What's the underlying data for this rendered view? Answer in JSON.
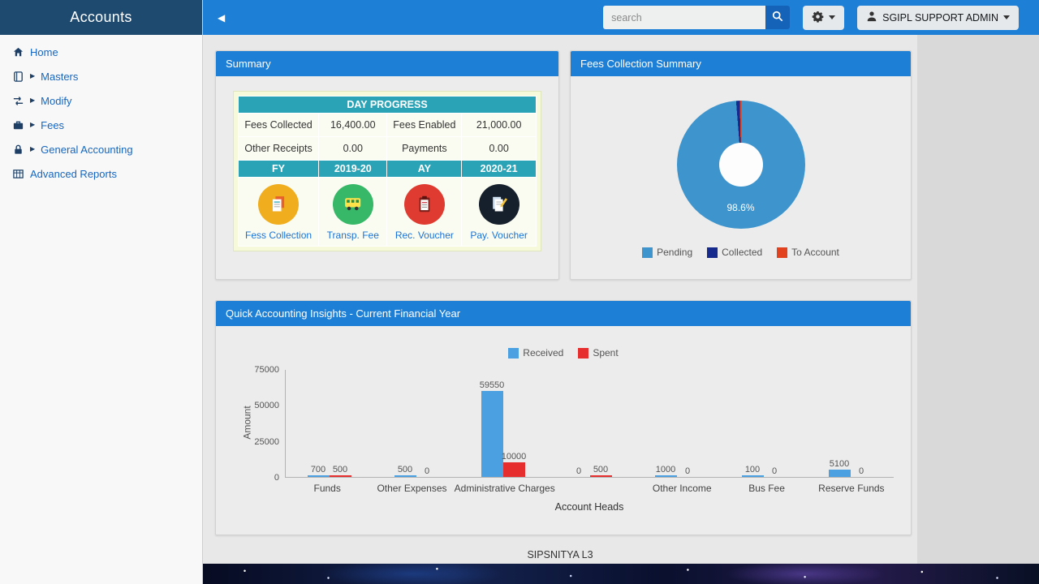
{
  "sidebar": {
    "title": "Accounts",
    "items": [
      {
        "label": "Home",
        "icon": "home-icon",
        "has_submenu": false
      },
      {
        "label": "Masters",
        "icon": "masters-icon",
        "has_submenu": true
      },
      {
        "label": "Modify",
        "icon": "modify-icon",
        "has_submenu": true
      },
      {
        "label": "Fees",
        "icon": "fees-icon",
        "has_submenu": true
      },
      {
        "label": "General Accounting",
        "icon": "lock-icon",
        "has_submenu": true
      },
      {
        "label": "Advanced Reports",
        "icon": "reports-icon",
        "has_submenu": false
      }
    ]
  },
  "topbar": {
    "collapse_arrow": "◀",
    "search_placeholder": "search",
    "user_label": "SGIPL SUPPORT ADMIN"
  },
  "summary_panel": {
    "title": "Summary",
    "table": {
      "header": "DAY PROGRESS",
      "header_color": "#29a3b5",
      "rows": [
        [
          "Fees Collected",
          "16,400.00",
          "Fees Enabled",
          "21,000.00"
        ],
        [
          "Other Receipts",
          "0.00",
          "Payments",
          "0.00"
        ]
      ],
      "year_row": [
        "FY",
        "2019-20",
        "AY",
        "2020-21"
      ]
    },
    "shortcuts": [
      {
        "label": "Fess Collection",
        "color": "#f0ad1d"
      },
      {
        "label": "Transp. Fee",
        "color": "#36b868"
      },
      {
        "label": "Rec. Voucher",
        "color": "#df3b30"
      },
      {
        "label": "Pay. Voucher",
        "color": "#161f2c"
      }
    ]
  },
  "fees_panel": {
    "title": "Fees Collection Summary",
    "chart_data": {
      "type": "pie",
      "labels": [
        "Pending",
        "Collected",
        "To Account"
      ],
      "values": [
        98.6,
        0.9,
        0.5
      ],
      "colors": [
        "#3e95cd",
        "#152a8c",
        "#e2431e"
      ],
      "center_label": "98.6%",
      "legend_position": "bottom"
    }
  },
  "insights_panel": {
    "title": "Quick Accounting Insights - Current Financial Year",
    "chart_data": {
      "type": "bar",
      "categories": [
        "Funds",
        "Other Expenses",
        "Administrative Charges",
        "",
        "Other Income",
        "Bus Fee",
        "Reserve Funds"
      ],
      "series": [
        {
          "name": "Received",
          "color": "#4aa0e0",
          "values": [
            700,
            500,
            59550,
            0,
            1000,
            100,
            5100
          ]
        },
        {
          "name": "Spent",
          "color": "#e62e2e",
          "values": [
            500,
            0,
            10000,
            500,
            0,
            0,
            0
          ]
        }
      ],
      "xlabel": "Account Heads",
      "ylabel": "Amount",
      "ylim": [
        0,
        75000
      ],
      "yticks": [
        0,
        25000,
        50000,
        75000
      ],
      "legend_position": "top"
    }
  },
  "footer": {
    "text": "SIPSNITYA L3"
  }
}
